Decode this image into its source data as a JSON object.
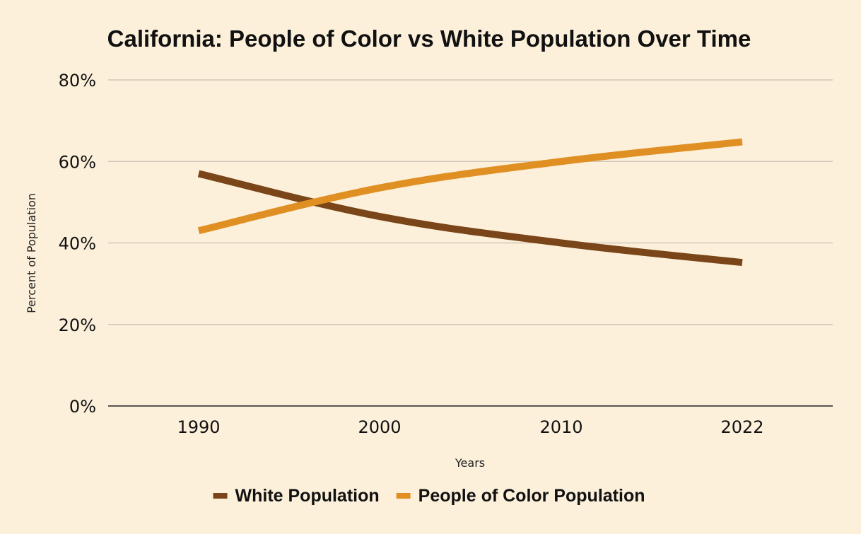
{
  "chart_data": {
    "type": "line",
    "title": "California: People of Color vs White Population Over Time",
    "xlabel": "Years",
    "ylabel": "Percent of Population",
    "categories": [
      "1990",
      "2000",
      "2010",
      "2022"
    ],
    "x": [
      1990,
      2000,
      2010,
      2022
    ],
    "ylim": [
      0,
      80
    ],
    "yticks": [
      "0%",
      "20%",
      "40%",
      "60%",
      "80%"
    ],
    "ytick_values": [
      0,
      20,
      40,
      60,
      80
    ],
    "grid": true,
    "legend_position": "bottom",
    "series": [
      {
        "name": "White Population",
        "color": "#7a4518",
        "values": [
          57,
          46.5,
          40,
          35.2
        ]
      },
      {
        "name": "People of Color Population",
        "color": "#e08f23",
        "values": [
          43,
          53.5,
          60,
          64.8
        ]
      }
    ]
  },
  "colors": {
    "background": "#fcf0da",
    "grid": "#c9c0b2"
  }
}
